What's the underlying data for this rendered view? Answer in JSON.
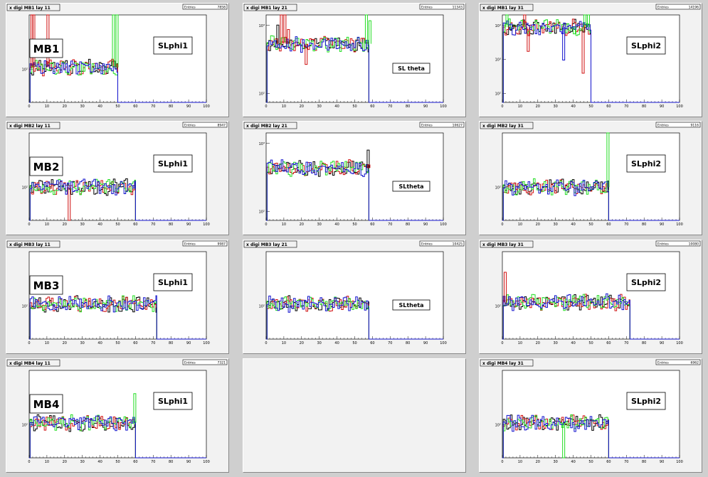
{
  "colors": {
    "black": "#000000",
    "red": "#d01010",
    "green": "#22dd22",
    "blue": "#1010cc",
    "frame_bg": "#ffffff",
    "pad_bg": "#f2f2f2"
  },
  "stats_label": "Entries",
  "chart_data": [
    {
      "type": "line",
      "title": "x digi MB1 lay 11",
      "entries": "7858",
      "x_range": [
        0,
        100
      ],
      "x_ticks": [
        "0",
        "10",
        "20",
        "30",
        "40",
        "50",
        "60",
        "70",
        "80",
        "90",
        "100"
      ],
      "y_scale": "log",
      "y_tick_labels": [
        "10²"
      ],
      "cutoff": 50,
      "level": 0.6,
      "spikes": [
        {
          "x": 1,
          "color": "red",
          "h": 1.0
        },
        {
          "x": 2,
          "color": "red",
          "h": 1.0
        },
        {
          "x": 10,
          "color": "red",
          "h": 1.0
        },
        {
          "x": 47,
          "color": "green",
          "h": 1.0
        },
        {
          "x": 49,
          "color": "green",
          "h": 1.0
        }
      ],
      "station_label": "MB1",
      "sl_label": "SLphi1",
      "series": [
        {
          "name": "",
          "color": "black"
        },
        {
          "name": "",
          "color": "red"
        },
        {
          "name": "",
          "color": "green"
        },
        {
          "name": "",
          "color": "blue"
        }
      ]
    },
    {
      "type": "line",
      "title": "x digi MB1 lay 21",
      "entries": "11343",
      "x_range": [
        0,
        100
      ],
      "x_ticks": [
        "0",
        "10",
        "20",
        "30",
        "40",
        "50",
        "60",
        "70",
        "80",
        "90",
        "100"
      ],
      "y_scale": "log",
      "y_tick_labels": [
        "10³",
        "10²"
      ],
      "cutoff": 58,
      "level": 0.33,
      "spikes": [
        {
          "x": 6,
          "color": "black",
          "h": 0.9
        },
        {
          "x": 8,
          "color": "red",
          "h": 1.0
        },
        {
          "x": 10,
          "color": "red",
          "h": 1.0
        },
        {
          "x": 12,
          "color": "red",
          "h": 0.85
        },
        {
          "x": 22,
          "color": "red",
          "h": 0.45
        },
        {
          "x": 56,
          "color": "green",
          "h": 1.0
        },
        {
          "x": 58,
          "color": "green",
          "h": 0.95
        }
      ],
      "station_label": "",
      "sl_label": "SL theta",
      "series": [
        {
          "name": "",
          "color": "black"
        },
        {
          "name": "",
          "color": "red"
        },
        {
          "name": "",
          "color": "green"
        },
        {
          "name": "",
          "color": "blue"
        }
      ]
    },
    {
      "type": "line",
      "title": "x digi MB1 lay 31",
      "entries": "14196",
      "x_range": [
        0,
        100
      ],
      "x_ticks": [
        "0",
        "10",
        "20",
        "30",
        "40",
        "50",
        "60",
        "70",
        "80",
        "90",
        "100"
      ],
      "y_scale": "log",
      "y_tick_labels": [
        "10⁴",
        "10³",
        "10²"
      ],
      "cutoff": 50,
      "level": 0.14,
      "spikes": [
        {
          "x": 2,
          "color": "green",
          "h": 1.0
        },
        {
          "x": 4,
          "color": "blue",
          "h": 0.85
        },
        {
          "x": 6,
          "color": "black",
          "h": 0.9
        },
        {
          "x": 12,
          "color": "red",
          "h": 1.0
        },
        {
          "x": 14,
          "color": "red",
          "h": 0.6
        },
        {
          "x": 34,
          "color": "blue",
          "h": 0.5
        },
        {
          "x": 40,
          "color": "green",
          "h": 0.8
        },
        {
          "x": 46,
          "color": "green",
          "h": 1.0
        },
        {
          "x": 48,
          "color": "green",
          "h": 1.0
        },
        {
          "x": 45,
          "color": "red",
          "h": 0.35
        }
      ],
      "station_label": "",
      "sl_label": "SLphi2",
      "series": [
        {
          "name": "",
          "color": "black"
        },
        {
          "name": "",
          "color": "red"
        },
        {
          "name": "",
          "color": "green"
        },
        {
          "name": "",
          "color": "blue"
        }
      ]
    },
    {
      "type": "line",
      "title": "x digi MB2 lay 11",
      "entries": "8947",
      "x_range": [
        0,
        100
      ],
      "x_ticks": [
        "0",
        "10",
        "20",
        "30",
        "40",
        "50",
        "60",
        "70",
        "80",
        "90",
        "100"
      ],
      "y_scale": "log",
      "y_tick_labels": [
        "10²"
      ],
      "cutoff": 60,
      "level": 0.62,
      "spikes": [],
      "dips": [
        {
          "x": 22,
          "color": "red"
        }
      ],
      "station_label": "MB2",
      "sl_label": "SLphi1",
      "series": [
        {
          "name": "",
          "color": "black"
        },
        {
          "name": "",
          "color": "red"
        },
        {
          "name": "",
          "color": "green"
        },
        {
          "name": "",
          "color": "blue"
        }
      ]
    },
    {
      "type": "line",
      "title": "x digi MB2 lay 21",
      "entries": "10627",
      "x_range": [
        0,
        100
      ],
      "x_ticks": [
        "0",
        "10",
        "20",
        "30",
        "40",
        "50",
        "60",
        "70",
        "80",
        "90",
        "100"
      ],
      "y_scale": "log",
      "y_tick_labels": [
        "10³",
        "10²"
      ],
      "cutoff": 58,
      "level": 0.4,
      "spikes": [
        {
          "x": 57,
          "color": "black",
          "h": 0.82
        },
        {
          "x": 57.4,
          "color": "red",
          "h": 0.65
        }
      ],
      "station_label": "",
      "sl_label": "SLtheta",
      "series": [
        {
          "name": "",
          "color": "black"
        },
        {
          "name": "",
          "color": "red"
        },
        {
          "name": "",
          "color": "green"
        },
        {
          "name": "",
          "color": "blue"
        }
      ]
    },
    {
      "type": "line",
      "title": "x digi MB2 lay 31",
      "entries": "9116",
      "x_range": [
        0,
        100
      ],
      "x_ticks": [
        "0",
        "10",
        "20",
        "30",
        "40",
        "50",
        "60",
        "70",
        "80",
        "90",
        "100"
      ],
      "y_scale": "log",
      "y_tick_labels": [
        "10²"
      ],
      "cutoff": 60,
      "level": 0.62,
      "spikes": [
        {
          "x": 59,
          "color": "green",
          "h": 1.0
        }
      ],
      "station_label": "",
      "sl_label": "SLphi2",
      "series": [
        {
          "name": "",
          "color": "black"
        },
        {
          "name": "",
          "color": "red"
        },
        {
          "name": "",
          "color": "green"
        },
        {
          "name": "",
          "color": "blue"
        }
      ]
    },
    {
      "type": "line",
      "title": "x digi MB3 lay 11",
      "entries": "9987",
      "x_range": [
        0,
        100
      ],
      "x_ticks": [
        "0",
        "10",
        "20",
        "30",
        "40",
        "50",
        "60",
        "70",
        "80",
        "90",
        "100"
      ],
      "y_scale": "log",
      "y_tick_labels": [
        "10²"
      ],
      "cutoff": 72,
      "level": 0.6,
      "spikes": [],
      "station_label": "MB3",
      "sl_label": "SLphi1",
      "series": [
        {
          "name": "",
          "color": "black"
        },
        {
          "name": "",
          "color": "red"
        },
        {
          "name": "",
          "color": "green"
        },
        {
          "name": "",
          "color": "blue"
        }
      ]
    },
    {
      "type": "line",
      "title": "x digi MB3 lay 21",
      "entries": "10425",
      "x_range": [
        0,
        100
      ],
      "x_ticks": [
        "0",
        "10",
        "20",
        "30",
        "40",
        "50",
        "60",
        "70",
        "80",
        "90",
        "100"
      ],
      "y_scale": "log",
      "y_tick_labels": [
        "10²"
      ],
      "cutoff": 58,
      "level": 0.6,
      "spikes": [],
      "station_label": "",
      "sl_label": "SLtheta",
      "series": [
        {
          "name": "",
          "color": "black"
        },
        {
          "name": "",
          "color": "red"
        },
        {
          "name": "",
          "color": "green"
        },
        {
          "name": "",
          "color": "blue"
        }
      ]
    },
    {
      "type": "line",
      "title": "x digi MB3 lay 31",
      "entries": "10080",
      "x_range": [
        0,
        100
      ],
      "x_ticks": [
        "0",
        "10",
        "20",
        "30",
        "40",
        "50",
        "60",
        "70",
        "80",
        "90",
        "100"
      ],
      "y_scale": "log",
      "y_tick_labels": [
        "10²"
      ],
      "cutoff": 72,
      "level": 0.58,
      "spikes": [
        {
          "x": 1,
          "color": "red",
          "h": 0.78
        }
      ],
      "station_label": "",
      "sl_label": "SLphi2",
      "series": [
        {
          "name": "",
          "color": "black"
        },
        {
          "name": "",
          "color": "red"
        },
        {
          "name": "",
          "color": "green"
        },
        {
          "name": "",
          "color": "blue"
        }
      ]
    },
    {
      "type": "line",
      "title": "x digi MB4 lay 11",
      "entries": "7321",
      "x_range": [
        0,
        100
      ],
      "x_ticks": [
        "0",
        "10",
        "20",
        "30",
        "40",
        "50",
        "60",
        "70",
        "80",
        "90",
        "100"
      ],
      "y_scale": "log",
      "y_tick_labels": [
        "10²"
      ],
      "cutoff": 60,
      "level": 0.6,
      "spikes": [
        {
          "x": 59,
          "color": "green",
          "h": 0.75
        }
      ],
      "station_label": "MB4",
      "sl_label": "SLphi1",
      "series": [
        {
          "name": "",
          "color": "black"
        },
        {
          "name": "",
          "color": "red"
        },
        {
          "name": "",
          "color": "green"
        },
        {
          "name": "",
          "color": "blue"
        }
      ]
    },
    null,
    {
      "type": "line",
      "title": "x digi MB4 lay 31",
      "entries": "6962",
      "x_range": [
        0,
        100
      ],
      "x_ticks": [
        "0",
        "10",
        "20",
        "30",
        "40",
        "50",
        "60",
        "70",
        "80",
        "90",
        "100"
      ],
      "y_scale": "log",
      "y_tick_labels": [
        "10²"
      ],
      "cutoff": 60,
      "level": 0.6,
      "spikes": [],
      "dips": [
        {
          "x": 34,
          "color": "green"
        }
      ],
      "station_label": "",
      "sl_label": "SLphi2",
      "series": [
        {
          "name": "",
          "color": "black"
        },
        {
          "name": "",
          "color": "red"
        },
        {
          "name": "",
          "color": "green"
        },
        {
          "name": "",
          "color": "blue"
        }
      ]
    }
  ]
}
